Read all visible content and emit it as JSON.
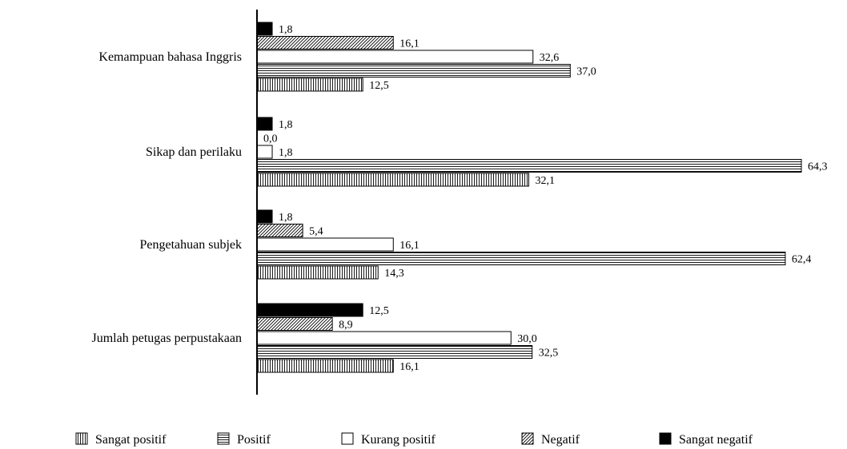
{
  "chart_data": {
    "type": "bar",
    "orientation": "horizontal",
    "title": "",
    "xlabel": "",
    "ylabel": "",
    "xlim": [
      0,
      64.3
    ],
    "grid": false,
    "legend_position": "bottom",
    "categories": [
      "Kemampuan bahasa Inggris",
      "Sikap dan perilaku",
      "Pengetahuan subjek",
      "Jumlah petugas perpustakaan"
    ],
    "series": [
      {
        "name": "Sangat negatif",
        "pattern": "solid",
        "color": "#000000",
        "values": [
          1.8,
          1.8,
          1.8,
          12.5
        ],
        "labels": [
          "1,8",
          "1,8",
          "1,8",
          "12,5"
        ]
      },
      {
        "name": "Negatif",
        "pattern": "diagonal",
        "color": "#000000",
        "values": [
          16.1,
          0.0,
          5.4,
          8.9
        ],
        "labels": [
          "16,1",
          "0,0",
          "5,4",
          "8,9"
        ]
      },
      {
        "name": "Kurang positif",
        "pattern": "empty",
        "color": "#000000",
        "values": [
          32.6,
          1.8,
          16.1,
          30.0
        ],
        "labels": [
          "32,6",
          "1,8",
          "16,1",
          "30,0"
        ]
      },
      {
        "name": "Positif",
        "pattern": "horizontal",
        "color": "#000000",
        "values": [
          37.0,
          64.3,
          62.4,
          32.5
        ],
        "labels": [
          "37,0",
          "64,3",
          "62,4",
          "32,5"
        ]
      },
      {
        "name": "Sangat positif",
        "pattern": "vertical",
        "color": "#000000",
        "values": [
          12.5,
          32.1,
          14.3,
          16.1
        ],
        "labels": [
          "12,5",
          "32,1",
          "14,3",
          "16,1"
        ]
      }
    ],
    "legend_order": [
      "Sangat positif",
      "Positif",
      "Kurang positif",
      "Negatif",
      "Sangat negatif"
    ]
  }
}
